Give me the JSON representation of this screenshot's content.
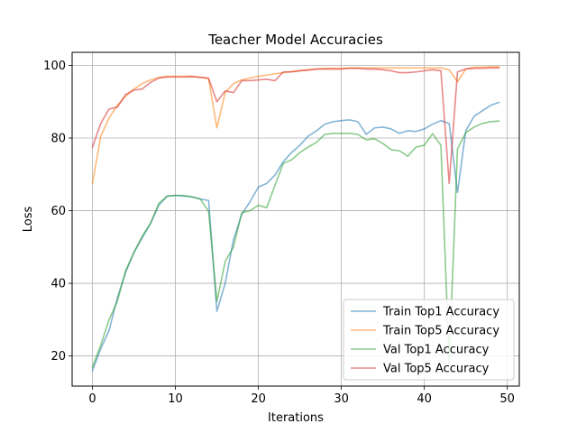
{
  "chart_data": {
    "type": "line",
    "title": "Teacher Model Accuracies",
    "xlabel": "Iterations",
    "ylabel": "Loss",
    "xlim": [
      -2.45,
      51.45
    ],
    "ylim": [
      11.7,
      103.6
    ],
    "xticks": [
      0,
      10,
      20,
      30,
      40,
      50
    ],
    "yticks": [
      20,
      40,
      60,
      80,
      100
    ],
    "grid": true,
    "legend_position": "lower-right",
    "x": [
      0,
      1,
      2,
      3,
      4,
      5,
      6,
      7,
      8,
      9,
      10,
      11,
      12,
      13,
      14,
      15,
      16,
      17,
      18,
      19,
      20,
      21,
      22,
      23,
      24,
      25,
      26,
      27,
      28,
      29,
      30,
      31,
      32,
      33,
      34,
      35,
      36,
      37,
      38,
      39,
      40,
      41,
      42,
      43,
      44,
      45,
      46,
      47,
      48,
      49
    ],
    "series": [
      {
        "name": "Train Top1 Accuracy",
        "color": "#1f77b4",
        "values": [
          16.0,
          22.0,
          27.0,
          36.0,
          43.0,
          48.5,
          52.5,
          56.5,
          61.5,
          64.0,
          64.2,
          64.0,
          63.8,
          63.2,
          62.8,
          32.3,
          40.0,
          52.0,
          59.0,
          62.5,
          66.5,
          67.5,
          69.8,
          73.5,
          76.0,
          78.0,
          80.5,
          82.0,
          83.8,
          84.5,
          84.8,
          85.0,
          84.5,
          81.0,
          82.8,
          83.0,
          82.5,
          81.3,
          82.0,
          81.8,
          82.5,
          83.8,
          84.8,
          84.0,
          65.0,
          82.0,
          86.0,
          87.5,
          89.0,
          89.8
        ]
      },
      {
        "name": "Train Top5 Accuracy",
        "color": "#ff7f0e",
        "values": [
          67.5,
          80.5,
          85.5,
          89.0,
          91.5,
          93.5,
          95.0,
          96.0,
          96.7,
          97.0,
          97.0,
          97.0,
          97.0,
          96.8,
          96.3,
          82.8,
          92.5,
          95.0,
          96.0,
          96.5,
          97.0,
          97.3,
          97.7,
          98.0,
          98.3,
          98.6,
          98.8,
          99.0,
          99.2,
          99.2,
          99.2,
          99.3,
          99.3,
          99.3,
          99.3,
          99.3,
          99.3,
          99.3,
          99.3,
          99.3,
          99.3,
          99.3,
          99.3,
          98.8,
          95.5,
          99.0,
          99.5,
          99.5,
          99.6,
          99.6
        ]
      },
      {
        "name": "Val Top1 Accuracy",
        "color": "#2ca02c",
        "values": [
          17.0,
          23.0,
          30.0,
          35.0,
          43.5,
          48.5,
          53.0,
          56.5,
          62.0,
          64.0,
          64.2,
          64.2,
          63.8,
          63.2,
          59.8,
          35.0,
          46.0,
          50.0,
          59.5,
          60.0,
          61.5,
          60.8,
          67.0,
          73.0,
          74.0,
          76.0,
          77.5,
          78.8,
          81.0,
          81.3,
          81.3,
          81.3,
          81.0,
          79.5,
          79.8,
          78.5,
          76.8,
          76.5,
          75.0,
          77.5,
          78.0,
          81.2,
          78.0,
          18.0,
          77.0,
          81.5,
          83.0,
          84.0,
          84.5,
          84.7
        ]
      },
      {
        "name": "Val Top5 Accuracy",
        "color": "#d62728",
        "values": [
          77.5,
          84.0,
          88.0,
          88.5,
          92.0,
          93.2,
          93.5,
          95.3,
          96.5,
          96.8,
          96.8,
          96.8,
          96.9,
          96.7,
          96.5,
          90.0,
          93.0,
          92.5,
          95.8,
          95.8,
          96.0,
          96.2,
          95.8,
          98.2,
          98.2,
          98.5,
          98.7,
          99.0,
          99.0,
          99.0,
          99.0,
          99.2,
          99.2,
          99.0,
          99.0,
          98.8,
          98.5,
          98.0,
          98.0,
          98.2,
          98.5,
          98.8,
          98.5,
          67.5,
          98.2,
          99.0,
          99.2,
          99.2,
          99.3,
          99.3
        ]
      }
    ]
  }
}
